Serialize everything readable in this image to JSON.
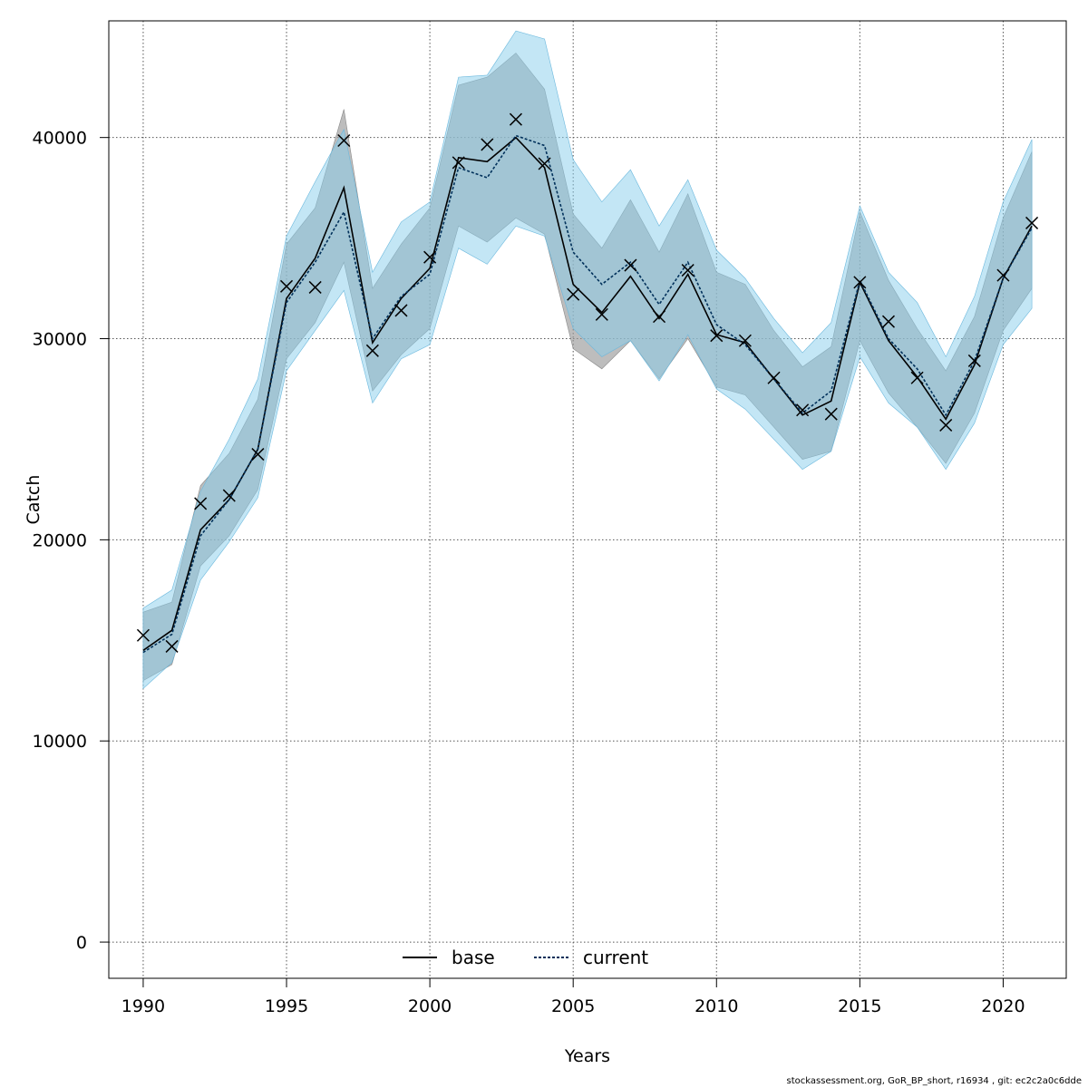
{
  "footnote": "stockassessment.org, GoR_BP_short, r16934 , git: ec2c2a0c6dde",
  "chart_data": {
    "type": "line",
    "title": "",
    "xlabel": "Years",
    "ylabel": "Catch",
    "xlim": [
      1988.8,
      2022.2
    ],
    "ylim": [
      -1800,
      45800
    ],
    "x_ticks": [
      1990,
      1995,
      2000,
      2005,
      2010,
      2015,
      2020
    ],
    "y_ticks": [
      0,
      10000,
      20000,
      30000,
      40000
    ],
    "grid": true,
    "legend_position": "bottom-center",
    "colors": {
      "base_line": "#000000",
      "base_band": "#9a9a9a",
      "current_line": "#00305a",
      "current_band": "#87ceeb",
      "observed_marker": "#000000",
      "grid": "#555555"
    },
    "x": [
      1990,
      1991,
      1992,
      1993,
      1994,
      1995,
      1996,
      1997,
      1998,
      1999,
      2000,
      2001,
      2002,
      2003,
      2004,
      2005,
      2006,
      2007,
      2008,
      2009,
      2010,
      2011,
      2012,
      2013,
      2014,
      2015,
      2016,
      2017,
      2018,
      2019,
      2020,
      2021
    ],
    "observed": [
      15250,
      14700,
      21800,
      22200,
      24250,
      32600,
      32550,
      39850,
      29400,
      31400,
      34050,
      38750,
      39650,
      40900,
      38700,
      32200,
      31200,
      33650,
      31100,
      33400,
      30150,
      29900,
      28050,
      26450,
      26250,
      32800,
      30850,
      28050,
      25700,
      28900,
      33150,
      35750
    ],
    "series": [
      {
        "name": "base",
        "values": [
          14500,
          15500,
          20500,
          22000,
          24500,
          32000,
          34000,
          37500,
          29800,
          32000,
          33500,
          39000,
          38800,
          40000,
          38500,
          32700,
          31300,
          33100,
          31000,
          33200,
          30200,
          29800,
          28000,
          26200,
          26900,
          32800,
          29900,
          28100,
          26000,
          28700,
          33000,
          35600
        ],
        "lower": [
          13000,
          13800,
          18700,
          20200,
          22500,
          29000,
          30800,
          33800,
          27400,
          29200,
          30500,
          35600,
          34800,
          36000,
          35200,
          29500,
          28500,
          29900,
          28000,
          30000,
          27600,
          27200,
          25600,
          24000,
          24400,
          29900,
          27300,
          25600,
          23800,
          26300,
          30400,
          32500
        ],
        "upper": [
          16400,
          16900,
          22700,
          24300,
          27000,
          34700,
          36500,
          41400,
          32500,
          34700,
          36500,
          42600,
          43000,
          44200,
          42400,
          36200,
          34500,
          36900,
          34300,
          37200,
          33300,
          32700,
          30400,
          28600,
          29600,
          36300,
          32900,
          30500,
          28400,
          31100,
          36000,
          39300
        ]
      },
      {
        "name": "current",
        "values": [
          14400,
          15300,
          20200,
          22000,
          24500,
          31800,
          33800,
          36300,
          30000,
          32100,
          33200,
          38500,
          38000,
          40100,
          39600,
          34300,
          32700,
          33800,
          31700,
          33800,
          30700,
          29700,
          28000,
          26300,
          27400,
          32900,
          30000,
          28500,
          26200,
          28900,
          33000,
          35500
        ],
        "lower": [
          12600,
          13900,
          18000,
          19900,
          22100,
          28400,
          30400,
          32400,
          26800,
          29000,
          29700,
          34500,
          33700,
          35600,
          35100,
          30500,
          29100,
          29900,
          27900,
          30200,
          27500,
          26500,
          25000,
          23500,
          24400,
          29100,
          26800,
          25600,
          23500,
          25800,
          29700,
          31500
        ],
        "upper": [
          16600,
          17500,
          22400,
          25000,
          28000,
          35100,
          37800,
          40400,
          33300,
          35800,
          36800,
          43000,
          43100,
          45300,
          44900,
          38900,
          36800,
          38400,
          35600,
          37900,
          34400,
          33000,
          31000,
          29300,
          30800,
          36600,
          33300,
          31800,
          29100,
          32100,
          36800,
          39900
        ]
      }
    ]
  }
}
